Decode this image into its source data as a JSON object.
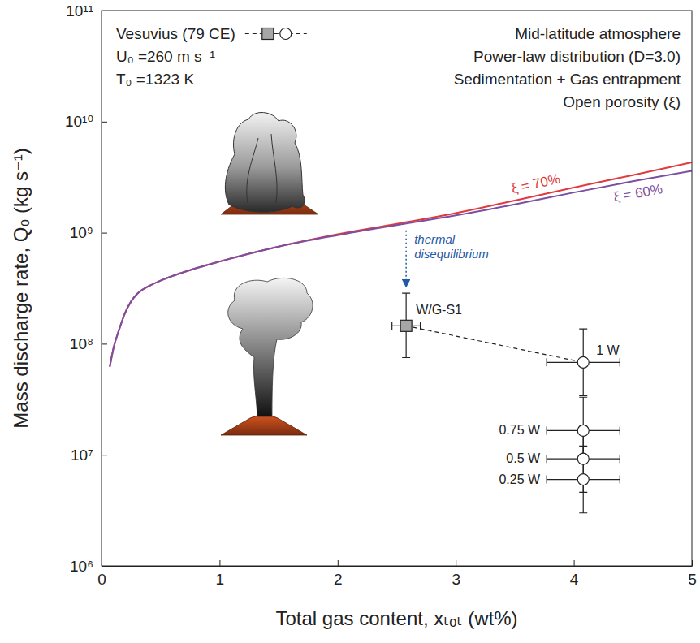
{
  "chart_data": {
    "type": "line",
    "xlabel": "Total gas content, xₜₒₜ (wt%)",
    "ylabel": "Mass discharge rate, Q₀ (kg s⁻¹)",
    "xlim": [
      0,
      5
    ],
    "xticks": [
      0,
      1,
      2,
      3,
      4,
      5
    ],
    "ylim": [
      1000000,
      100000000000
    ],
    "yticks": [
      {
        "value": 1000000,
        "label": "10⁶"
      },
      {
        "value": 10000000,
        "label": "10⁷"
      },
      {
        "value": 100000000,
        "label": "10⁸"
      },
      {
        "value": 1000000000,
        "label": "10⁹"
      },
      {
        "value": 10000000000,
        "label": "10¹⁰"
      },
      {
        "value": 100000000000,
        "label": "10¹¹"
      }
    ],
    "log": "y",
    "grid": false,
    "legend": "top-left",
    "annotations": [
      "U₀ =260 m s⁻¹",
      "T₀ =1323 K",
      "Mid-latitude atmosphere",
      "Power-law distribution (D=3.0)",
      "Sedimentation + Gas entrapment",
      "Open porosity (ξ)",
      "thermal disequilibrium"
    ],
    "series": [
      {
        "name": "ξ = 70%",
        "type": "line",
        "color": "#e0393e",
        "x": [
          0.07,
          0.1,
          0.15,
          0.2,
          0.25,
          0.3,
          0.4,
          0.5,
          0.75,
          1,
          1.5,
          2,
          2.5,
          3,
          3.5,
          4,
          4.5,
          5
        ],
        "values": [
          62000000,
          90000000,
          135000000,
          190000000,
          240000000,
          280000000,
          330000000,
          370000000,
          460000000,
          550000000,
          750000000,
          970000000,
          1200000000,
          1500000000,
          1950000000,
          2550000000,
          3300000000,
          4300000000
        ]
      },
      {
        "name": "ξ = 60%",
        "type": "line",
        "color": "#7b4fa2",
        "x": [
          0.07,
          0.1,
          0.15,
          0.2,
          0.25,
          0.3,
          0.4,
          0.5,
          0.75,
          1,
          1.5,
          2,
          2.5,
          3,
          3.5,
          4,
          4.5,
          5
        ],
        "values": [
          62000000,
          90000000,
          135000000,
          190000000,
          240000000,
          280000000,
          330000000,
          370000000,
          460000000,
          550000000,
          750000000,
          950000000,
          1170000000,
          1430000000,
          1800000000,
          2300000000,
          2900000000,
          3600000000
        ]
      },
      {
        "name": "Vesuvius (79 CE)",
        "type": "scatter",
        "marker": "square",
        "line_style": "dashed",
        "color": "#a6a6a6",
        "x": [
          2.58
        ],
        "x_err": [
          0.12
        ],
        "values": [
          145000000
        ],
        "y_lower": [
          75000000
        ],
        "y_upper": [
          285000000
        ],
        "labels": [
          "W/G-S1"
        ]
      },
      {
        "type": "scatter",
        "marker": "circle",
        "color": "#ffffff",
        "x": [
          4.08,
          4.08,
          4.08,
          4.08
        ],
        "x_err": [
          0.31,
          0.31,
          0.31,
          0.31
        ],
        "values": [
          68000000,
          16500000,
          9200000,
          6000000
        ],
        "y_lower": [
          34000000,
          8300000,
          4600000,
          3000000
        ],
        "y_upper": [
          136000000,
          33000000,
          18400000,
          12000000
        ],
        "labels": [
          "1 W",
          "0.75 W",
          "0.5 W",
          "0.25 W"
        ]
      }
    ]
  }
}
